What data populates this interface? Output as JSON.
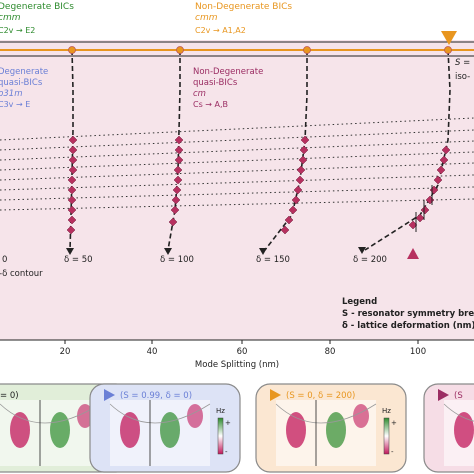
{
  "colors": {
    "plot_bg": "#f6e4ea",
    "top_line": "#e8961f",
    "marker": "#b7305f",
    "green": "#2e8b2e",
    "orange": "#e8961f",
    "blue": "#6a7fd6",
    "magenta": "#9b2d63",
    "panel_green_bg": "#e1eed9",
    "panel_blue_bg": "#dde3f6",
    "panel_orange_bg": "#fbe7d2",
    "panel_pink_bg": "#f6dde6"
  },
  "header": {
    "green_title": "Degenerate BICs",
    "green_group": "cmm",
    "green_irrep": "C2v → E2",
    "orange_title": "Non-Degenerate BICs",
    "orange_group": "cmm",
    "orange_irrep": "C2v → A1,A2"
  },
  "annotations": {
    "blue_line1": "Degenerate",
    "blue_line2": "quasi-BICs",
    "blue_group": "p31m",
    "blue_irrep": "C3v → E",
    "mag_line1": "Non-Degenerate",
    "mag_line2": "quasi-BICs",
    "mag_group": "cm",
    "mag_irrep": "Cs → A,B",
    "s_top": "S =",
    "iso": "iso-",
    "zero": "0",
    "delta_contour": "-δ contour"
  },
  "delta_labels": [
    "δ = 50",
    "δ = 100",
    "δ = 150",
    "δ = 200"
  ],
  "legend": {
    "title": "Legend",
    "s_line": "S - resonator symmetry break",
    "delta_line": "δ - lattice deformation (nm)"
  },
  "x_axis": {
    "label": "Mode Splitting (nm)",
    "ticks": [
      "20",
      "40",
      "60",
      "80",
      "100"
    ]
  },
  "panels": [
    {
      "title": "= 0)",
      "icon": "none"
    },
    {
      "title": "(S = 0.99, δ = 0)",
      "icon": "triangle-right-blue"
    },
    {
      "title": "(S = 0, δ = 200)",
      "icon": "triangle-right-orange"
    },
    {
      "title": "(S",
      "icon": "triangle-right-magenta"
    }
  ],
  "colorbar": {
    "label": "Hz",
    "plus": "+",
    "minus": "-"
  }
}
